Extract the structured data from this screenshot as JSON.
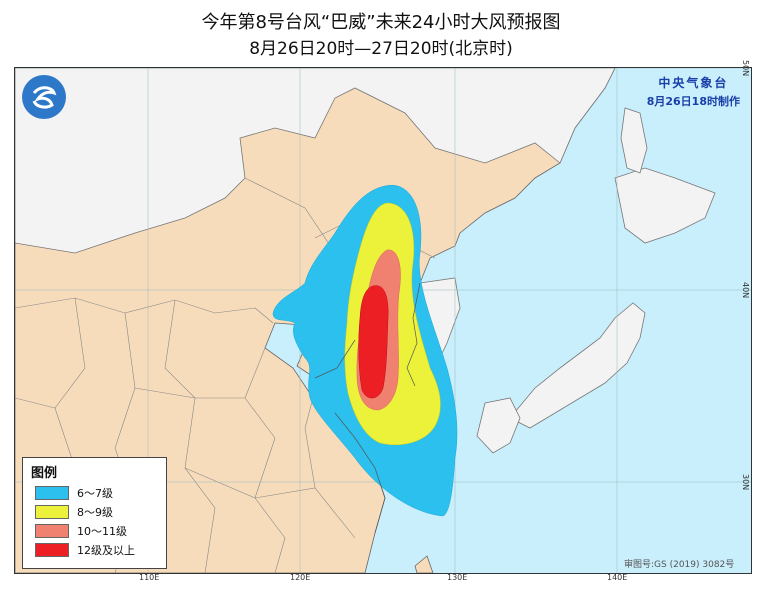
{
  "title": {
    "line1": "今年第8号台风“巴威”未来24小时大风预报图",
    "line2": "8月26日20时—27日20时(北京时)"
  },
  "issuer": {
    "org": "中央气象台",
    "made": "8月26日18时制作"
  },
  "logo": "cma-logo",
  "legend": {
    "title": "图例",
    "items": [
      {
        "label": "6～7级",
        "color": "#2bc0ee"
      },
      {
        "label": "8～9级",
        "color": "#ecf23a"
      },
      {
        "label": "10～11级",
        "color": "#f08070"
      },
      {
        "label": "12级及以上",
        "color": "#ec1f24"
      }
    ]
  },
  "axes": {
    "lon_labels": [
      "110E",
      "120E",
      "130E",
      "140E"
    ],
    "lat_labels": [
      "50N",
      "40N",
      "30N"
    ]
  },
  "approval": "审图号:GS (2019) 3082号",
  "colors": {
    "ocean": "#c9eefc",
    "land": "#f6dcbb",
    "border": "#555555",
    "issuer_text": "#1a3fa8"
  }
}
